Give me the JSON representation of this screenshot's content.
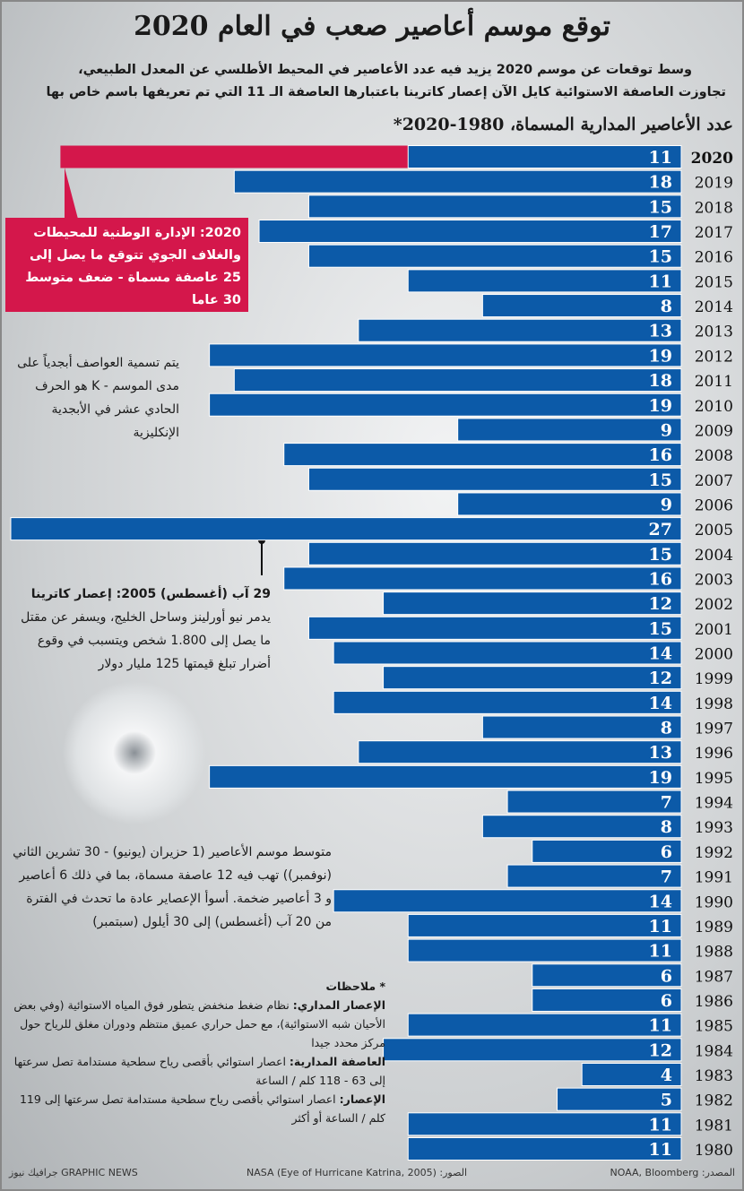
{
  "header": {
    "title": "توقع موسم أعاصير صعب في العام 2020",
    "subtitle_lines": [
      "وسط توقعات عن موسم 2020 يزيد فيه عدد الأعاصير في المحيط الأطلسي عن المعدل الطبيعي،",
      "تجاوزت العاصفة الاستوائية كايل الآن إعصار كاترينا باعتبارها العاصفة الـ 11 التي تم تعريفها باسم خاص بها"
    ]
  },
  "chart_data": {
    "type": "bar",
    "orientation": "horizontal",
    "title": "عدد الأعاصير المدارية المسماة، 1980-2020*",
    "categories": [
      "2020",
      "2019",
      "2018",
      "2017",
      "2016",
      "2015",
      "2014",
      "2013",
      "2012",
      "2011",
      "2010",
      "2009",
      "2008",
      "2007",
      "2006",
      "2005",
      "2004",
      "2003",
      "2002",
      "2001",
      "2000",
      "1999",
      "1998",
      "1997",
      "1996",
      "1995",
      "1994",
      "1993",
      "1992",
      "1991",
      "1990",
      "1989",
      "1988",
      "1987",
      "1986",
      "1985",
      "1984",
      "1983",
      "1982",
      "1981",
      "1980"
    ],
    "values": [
      11,
      18,
      15,
      17,
      15,
      11,
      8,
      13,
      19,
      18,
      19,
      9,
      16,
      15,
      9,
      27,
      15,
      16,
      12,
      15,
      14,
      12,
      14,
      8,
      13,
      19,
      7,
      8,
      6,
      7,
      14,
      11,
      11,
      6,
      6,
      11,
      12,
      4,
      5,
      11,
      11
    ],
    "color": "#0c5aa8",
    "highlight": {
      "value": 25,
      "color": "#d4174b"
    }
  },
  "annotations": {
    "forecast": "2020: الإدارة الوطنية للمحيطات والغلاف الجوي تتوقع ما يصل إلى 25 عاصفة مسماة - ضعف متوسط 30 عاما",
    "naming": "يتم تسمية العواصف أبجدياً على مدى الموسم - K هو الحرف الحادي عشر في الأبجدية الإنكليزية",
    "katrina_head": "29 آب (أغسطس) 2005: إعصار كاترينا",
    "katrina_body": "يدمر نيو أورلينز وساحل الخليج، ويسفر عن مقتل ما يصل إلى 1.800 شخص ويتسبب في وقوع أضرار تبلغ قيمتها 125 مليار دولار",
    "average": "متوسط موسم الأعاصير (1 حزيران (يونيو) - 30 تشرين الثاني (نوفمبر)) تهب فيه 12 عاصفة مسماة، بما في ذلك 6 أعاصير و 3 أعاصير ضخمة. أسوأ الإعصاير عادة ما تحدث في الفترة من 20 آب (أغسطس) إلى 30 أيلول (سبتمبر)"
  },
  "notes": {
    "title": "* ملاحظات",
    "items": [
      {
        "term": "الإعصار المداري:",
        "text": "نظام ضغط منخفض يتطور فوق المياه الاستوائية (وفي بعض الأحيان شبه الاستوائية)، مع حمل حراري عميق منتظم ودوران مغلق للرياح حول مركز محدد جيدا"
      },
      {
        "term": "العاصفة المدارية:",
        "text": "اعصار استوائي بأقصى رياح سطحية مستدامة تصل سرعتها إلى 63 - 118 كلم / الساعة"
      },
      {
        "term": "الإعصار:",
        "text": "اعصار استوائي بأقصى رياح سطحية مستدامة تصل سرعتها إلى 119 كلم / الساعة أو أكثر"
      }
    ]
  },
  "footer": {
    "source": "المصدر: NOAA, Bloomberg",
    "photo": "الصور: NASA (Eye of Hurricane Katrina, 2005)",
    "brand": "GRAPHIC NEWS جرافيك نيوز"
  }
}
